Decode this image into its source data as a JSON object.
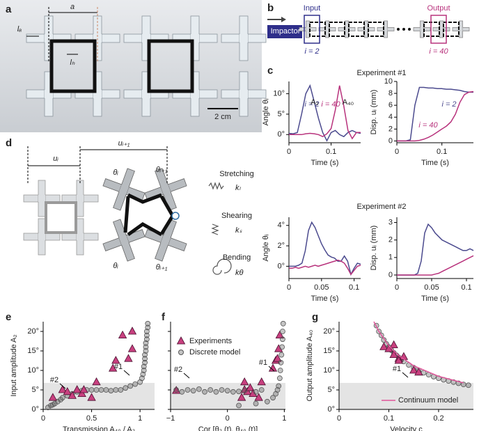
{
  "panel_labels": [
    "a",
    "b",
    "c",
    "d",
    "e",
    "f",
    "g"
  ],
  "panel_a": {
    "a": "a",
    "la": "lₐ",
    "lh": "lₕ",
    "scale": "2 cm"
  },
  "panel_b": {
    "impactor": "Impactor",
    "input": "Input",
    "output": "Output",
    "i_in": "i = 2",
    "i_out": "i = 40"
  },
  "panel_c": {
    "title_1": "Experiment #1",
    "title_2": "Experiment #2"
  },
  "panel_d": {
    "u_i": "uᵢ",
    "u_i1": "uᵢ₊₁",
    "theta_i": "θᵢ",
    "theta_i1": "θᵢ₊₁",
    "stretching": "Stretching",
    "k_l": "kₗ",
    "shearing": "Shearing",
    "k_s": "kₛ",
    "bending": "Bending",
    "k_theta": "kθ"
  },
  "chart_data": [
    {
      "type": "line",
      "xlabel": "Time (s)",
      "ylabel": "Angle θᵢ",
      "x": [
        0,
        0.01,
        0.02,
        0.03,
        0.04,
        0.05,
        0.06,
        0.07,
        0.08,
        0.09,
        0.1,
        0.11,
        0.12,
        0.13,
        0.14,
        0.15,
        0.16,
        0.17
      ],
      "xlim": [
        0,
        0.17
      ],
      "xticks": [
        0,
        0.1
      ],
      "ylim": [
        -2,
        13
      ],
      "yticks": [
        {
          "value": 0,
          "label": "0°"
        },
        {
          "value": 5,
          "label": "5°"
        },
        {
          "value": 10,
          "label": "10°"
        }
      ],
      "annotations": [
        "A₂",
        "A₄₀"
      ],
      "series": [
        {
          "name": "i = 2",
          "color": "#4b4a8e",
          "values": [
            0.3,
            0.2,
            0.5,
            5,
            10,
            12,
            8,
            4,
            0.5,
            -1.5,
            0.5,
            1,
            0,
            -0.5,
            0.5,
            1,
            0.5,
            0.3
          ]
        },
        {
          "name": "i = 40",
          "color": "#b8327c",
          "values": [
            0,
            0,
            0,
            0,
            0.2,
            0.3,
            0.2,
            0,
            -0.5,
            0.2,
            1.5,
            6,
            12,
            7,
            1,
            -1,
            0.5,
            0.5
          ]
        }
      ]
    },
    {
      "type": "line",
      "xlabel": "Time (s)",
      "ylabel": "Disp. uᵢ (mm)",
      "x": [
        0,
        0.01,
        0.02,
        0.03,
        0.04,
        0.05,
        0.06,
        0.07,
        0.08,
        0.09,
        0.1,
        0.11,
        0.12,
        0.13,
        0.14,
        0.15,
        0.16,
        0.17
      ],
      "xlim": [
        0,
        0.17
      ],
      "xticks": [
        0,
        0.1
      ],
      "ylim": [
        -0.3,
        10
      ],
      "yticks": [
        0,
        2,
        4,
        6,
        8,
        10
      ],
      "series": [
        {
          "name": "i = 2",
          "color": "#4b4a8e",
          "values": [
            0,
            0,
            0,
            0.2,
            6,
            9,
            9,
            8.9,
            8.9,
            8.8,
            8.8,
            8.7,
            8.7,
            8.6,
            8.5,
            8.3,
            8.2,
            8.2
          ]
        },
        {
          "name": "i = 40",
          "color": "#b8327c",
          "values": [
            0,
            0,
            0,
            0,
            0,
            0.1,
            0.3,
            0.6,
            1,
            1.5,
            2,
            2.5,
            3.2,
            4.5,
            6.5,
            7.8,
            8.2,
            8.3
          ]
        }
      ]
    },
    {
      "type": "line",
      "xlabel": "Time (s)",
      "ylabel": "Angle θᵢ",
      "x": [
        0,
        0.005,
        0.01,
        0.015,
        0.02,
        0.025,
        0.03,
        0.035,
        0.04,
        0.045,
        0.05,
        0.055,
        0.06,
        0.065,
        0.07,
        0.075,
        0.08,
        0.085,
        0.09,
        0.095,
        0.1,
        0.105,
        0.11
      ],
      "xlim": [
        0,
        0.11
      ],
      "xticks": [
        0,
        0.05,
        0.1
      ],
      "ylim": [
        -1.2,
        4.8
      ],
      "yticks": [
        {
          "value": 0,
          "label": "0°"
        },
        {
          "value": 2,
          "label": "2°"
        },
        {
          "value": 4,
          "label": "4°"
        }
      ],
      "series": [
        {
          "color": "#4b4a8e",
          "values": [
            0,
            0,
            0,
            0.1,
            0.3,
            1.5,
            3.5,
            4.3,
            3.8,
            3,
            2.2,
            1.6,
            1.1,
            0.9,
            0.8,
            0.5,
            0.5,
            1,
            0.5,
            -0.8,
            -0.2,
            0.3,
            0.2
          ]
        },
        {
          "color": "#b8327c",
          "values": [
            -0.2,
            -0.2,
            -0.1,
            -0.2,
            -0.1,
            0,
            -0.1,
            0,
            0.1,
            0,
            0.1,
            0.2,
            0.3,
            0.4,
            0.5,
            0.6,
            0.5,
            0.3,
            -0.2,
            -0.8,
            -0.4,
            0,
            0.1
          ]
        }
      ]
    },
    {
      "type": "line",
      "xlabel": "Time (s)",
      "ylabel": "Disp. uᵢ (mm)",
      "x": [
        0,
        0.005,
        0.01,
        0.015,
        0.02,
        0.025,
        0.03,
        0.035,
        0.04,
        0.045,
        0.05,
        0.055,
        0.06,
        0.065,
        0.07,
        0.075,
        0.08,
        0.085,
        0.09,
        0.095,
        0.1,
        0.105,
        0.11
      ],
      "xlim": [
        0,
        0.11
      ],
      "xticks": [
        0,
        0.05,
        0.1
      ],
      "ylim": [
        -0.2,
        3.3
      ],
      "yticks": [
        0,
        1,
        2,
        3
      ],
      "series": [
        {
          "color": "#4b4a8e",
          "values": [
            0,
            0,
            0,
            0,
            0,
            0,
            0.1,
            0.8,
            2.4,
            2.9,
            2.7,
            2.4,
            2.2,
            2,
            1.9,
            1.8,
            1.7,
            1.6,
            1.5,
            1.4,
            1.4,
            1.5,
            1.4
          ]
        },
        {
          "color": "#b8327c",
          "values": [
            0,
            0,
            0,
            0,
            0,
            0,
            0,
            0,
            0,
            0,
            0,
            0.05,
            0.1,
            0.2,
            0.3,
            0.4,
            0.5,
            0.6,
            0.7,
            0.8,
            0.9,
            1,
            1.1
          ]
        }
      ]
    },
    {
      "type": "scatter",
      "xlabel": "Transmission A₄₀ / A₂",
      "ylabel": "Input amplitude A₂",
      "xlim": [
        0,
        1.15
      ],
      "xticks": [
        0,
        0.5,
        1
      ],
      "ylim": [
        0,
        22.5
      ],
      "yticks": [
        {
          "value": 0,
          "label": "0°"
        },
        {
          "value": 5,
          "label": "5°"
        },
        {
          "value": 10,
          "label": "10°"
        },
        {
          "value": 15,
          "label": "15°"
        },
        {
          "value": 20,
          "label": "20°"
        }
      ],
      "shaded_ylim": [
        0,
        6.8
      ],
      "annotations": [
        "#1",
        "#2"
      ],
      "series": [
        {
          "marker": "circle",
          "color": "#555555",
          "x": [
            0.05,
            0.08,
            0.1,
            0.12,
            0.15,
            0.18,
            0.2,
            0.25,
            0.3,
            0.35,
            0.4,
            0.45,
            0.5,
            0.55,
            0.6,
            0.65,
            0.7,
            0.75,
            0.8,
            0.85,
            0.9,
            0.95,
            1,
            1.02,
            1.03,
            1.04,
            1.04,
            1.05,
            1.05,
            1.05,
            1.06,
            1.06,
            1.06,
            1.07,
            1.07,
            1.07,
            1.08,
            1.08
          ],
          "values": [
            0.5,
            1,
            1.2,
            1.5,
            2,
            2.5,
            3,
            3.5,
            4,
            4.5,
            4.8,
            5,
            5,
            5,
            5,
            5,
            4.8,
            5,
            5,
            5.5,
            6,
            6.5,
            7,
            8,
            9,
            10,
            11,
            12,
            13,
            14,
            15,
            16,
            17,
            18,
            19,
            20,
            21,
            22
          ]
        },
        {
          "marker": "triangle",
          "color": "#c8407f",
          "x": [
            0.1,
            0.2,
            0.25,
            0.3,
            0.35,
            0.4,
            0.42,
            0.5,
            0.55,
            0.72,
            0.75,
            0.82,
            0.88,
            0.92,
            0.92
          ],
          "values": [
            3,
            5,
            4.5,
            3.5,
            5,
            4,
            5,
            3,
            7,
            10.5,
            12.5,
            19,
            13,
            15.5,
            20
          ]
        }
      ]
    },
    {
      "type": "scatter",
      "xlabel": "Cor [θ₂ (t), θ₄₀ (t)]",
      "xlim": [
        -1,
        1.02
      ],
      "xticks": [
        {
          "value": -1,
          "label": "−1"
        },
        0,
        1
      ],
      "ylim": [
        0,
        22.5
      ],
      "yticks": [
        0,
        5,
        10,
        15,
        20
      ],
      "show_ytick_labels": false,
      "shaded_ylim": [
        0,
        6.8
      ],
      "annotations": [
        "#1",
        "#2"
      ],
      "series": [
        {
          "name": "Experiments",
          "marker": "triangle",
          "color": "#c8407f",
          "x": [
            0.25,
            0.3,
            0.35,
            0.4,
            0.45,
            0.55,
            0.6,
            0.8,
            0.85,
            0.88,
            0.9,
            0.92,
            -0.9,
            0.3
          ],
          "values": [
            3,
            5,
            4.5,
            5.5,
            4,
            3,
            7,
            10.5,
            12.5,
            13,
            15.5,
            19,
            4.8,
            7
          ]
        },
        {
          "name": "Discrete model",
          "marker": "circle",
          "color": "#555555",
          "x": [
            -0.9,
            -0.8,
            -0.7,
            -0.6,
            -0.5,
            -0.4,
            -0.3,
            -0.2,
            -0.1,
            0,
            0.1,
            0.2,
            0.3,
            0.5,
            0.6,
            0.2,
            0.5,
            0.7,
            0.8,
            0.85,
            0.88,
            0.9,
            0.92,
            0.93,
            0.94,
            0.95,
            0.96,
            0.97,
            0.97,
            0.98
          ],
          "values": [
            5,
            4.5,
            5,
            4.8,
            5.2,
            4.5,
            5,
            4.5,
            5,
            4.8,
            4.5,
            4.6,
            4.8,
            4.5,
            5,
            1,
            1.5,
            2,
            3,
            4,
            5,
            6,
            8,
            10,
            12,
            14,
            16,
            18,
            20,
            22
          ]
        }
      ]
    },
    {
      "type": "scatter",
      "xlabel": "Velocity c",
      "ylabel": "Output amplitude A₄₀",
      "xlim": [
        0,
        0.27
      ],
      "xticks": [
        0,
        0.1,
        0.2
      ],
      "ylim": [
        0,
        22.5
      ],
      "yticks": [
        {
          "value": 0,
          "label": "0°"
        },
        {
          "value": 5,
          "label": "5°"
        },
        {
          "value": 10,
          "label": "10°"
        },
        {
          "value": 15,
          "label": "15°"
        },
        {
          "value": 20,
          "label": "20°"
        }
      ],
      "shaded_ylim": [
        0,
        6.8
      ],
      "annotations": [
        "#1"
      ],
      "series": [
        {
          "marker": "circle",
          "color": "#555555",
          "x": [
            0.075,
            0.08,
            0.085,
            0.09,
            0.095,
            0.1,
            0.105,
            0.11,
            0.115,
            0.12,
            0.125,
            0.13,
            0.14,
            0.15,
            0.16,
            0.17,
            0.18,
            0.19,
            0.2,
            0.21,
            0.22,
            0.23,
            0.24,
            0.25,
            0.26
          ],
          "values": [
            21.5,
            20,
            19,
            17.8,
            16.8,
            16,
            15.2,
            14.5,
            13.9,
            13.3,
            12.8,
            12.3,
            11.4,
            10.7,
            10,
            9.4,
            8.9,
            8.4,
            8,
            7.6,
            7.3,
            7,
            6.7,
            6.4,
            6.2
          ]
        },
        {
          "marker": "triangle",
          "color": "#c8407f",
          "x": [
            0.09,
            0.1,
            0.11,
            0.11,
            0.12,
            0.12,
            0.13,
            0.15,
            0.16
          ],
          "values": [
            16,
            15.5,
            14,
            16.5,
            13,
            12.5,
            13.5,
            10,
            9.5
          ]
        },
        {
          "name": "Continuum model",
          "marker": "line",
          "color": "#e0559a",
          "x": [
            0.07,
            0.08,
            0.1,
            0.12,
            0.15,
            0.2,
            0.25
          ],
          "values": [
            22.5,
            20,
            16.3,
            13.8,
            11.2,
            8.5,
            6.8
          ]
        }
      ]
    }
  ]
}
